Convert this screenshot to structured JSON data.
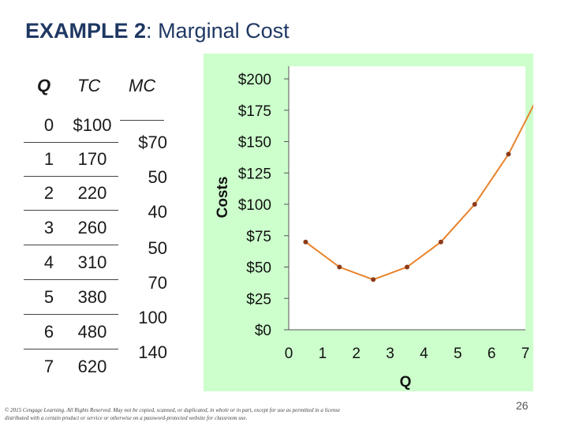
{
  "title": {
    "bold": "EXAMPLE 2",
    "sep": ":  ",
    "rest": "Marginal Cost"
  },
  "table": {
    "headers": {
      "q": "Q",
      "tc": "TC",
      "mc": "MC"
    },
    "rows": [
      {
        "q": "0",
        "tc": "$100"
      },
      {
        "q": "1",
        "tc": "170"
      },
      {
        "q": "2",
        "tc": "220"
      },
      {
        "q": "3",
        "tc": "260"
      },
      {
        "q": "4",
        "tc": "310"
      },
      {
        "q": "5",
        "tc": "380"
      },
      {
        "q": "6",
        "tc": "480"
      },
      {
        "q": "7",
        "tc": "620"
      }
    ],
    "mc": [
      "$70",
      "50",
      "40",
      "50",
      "70",
      "100",
      "140"
    ]
  },
  "chart_data": {
    "type": "line",
    "xlabel": "Q",
    "ylabel": "Costs",
    "xlim": [
      0,
      7
    ],
    "ylim": [
      0,
      200
    ],
    "x_ticks": [
      "0",
      "1",
      "2",
      "3",
      "4",
      "5",
      "6",
      "7"
    ],
    "y_ticks": [
      "$0",
      "$25",
      "$50",
      "$75",
      "$100",
      "$125",
      "$150",
      "$175",
      "$200"
    ],
    "grid": false,
    "line_color": "#e8822a",
    "marker_color": "#8b3a1a",
    "series": [
      {
        "x": [
          0.5,
          1.5,
          2.5,
          3.5,
          4.5,
          5.5,
          6.5
        ],
        "y": [
          70,
          50,
          40,
          50,
          70,
          100,
          140
        ]
      }
    ]
  },
  "footer": {
    "copyright": "© 2015 Cengage Learning. All Rights Reserved. May not be copied, scanned, or duplicated, in whole or in part, except for use as permitted in a license distributed with a certain product or service or otherwise on a password-protected website for classroom use.",
    "page": "26"
  }
}
